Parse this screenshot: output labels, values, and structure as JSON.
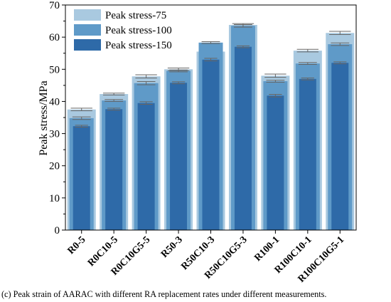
{
  "chart_data": {
    "type": "bar",
    "ylabel": "Peak stress/MPa",
    "ylim": [
      0,
      70
    ],
    "yticks": [
      0,
      10,
      20,
      30,
      40,
      50,
      60,
      70
    ],
    "categories": [
      "R0-5",
      "R0C10-5",
      "R0C10G5-5",
      "R50-3",
      "R50C10-3",
      "R50C10G5-3",
      "R100-1",
      "R100C10-1",
      "R100C10G5-1"
    ],
    "series": [
      {
        "name": "Peak stress-75",
        "color": "#a9c9e0",
        "values": [
          37.5,
          42.3,
          47.8,
          50.0,
          55.5,
          63.8,
          48.0,
          55.8,
          61.3
        ],
        "errors": [
          0.4,
          0.3,
          0.5,
          0.4,
          0.4,
          0.4,
          0.5,
          0.4,
          0.5
        ]
      },
      {
        "name": "Peak stress-100",
        "color": "#5f9ac8",
        "values": [
          34.8,
          40.3,
          45.7,
          49.5,
          58.3,
          63.5,
          46.3,
          51.8,
          57.8
        ],
        "errors": [
          0.4,
          0.3,
          0.5,
          0.3,
          0.3,
          0.4,
          0.3,
          0.3,
          0.4
        ]
      },
      {
        "name": "Peak stress-150",
        "color": "#2e6aa8",
        "values": [
          32.3,
          37.6,
          39.5,
          45.8,
          53.0,
          57.0,
          41.8,
          47.0,
          52.0
        ],
        "errors": [
          0.3,
          0.3,
          0.4,
          0.3,
          0.4,
          0.3,
          0.4,
          0.3,
          0.3
        ]
      }
    ],
    "legend_position": "top-left",
    "grid": false
  },
  "caption": "(c) Peak strain of AARAC with different RA replacement rates under different measurements."
}
